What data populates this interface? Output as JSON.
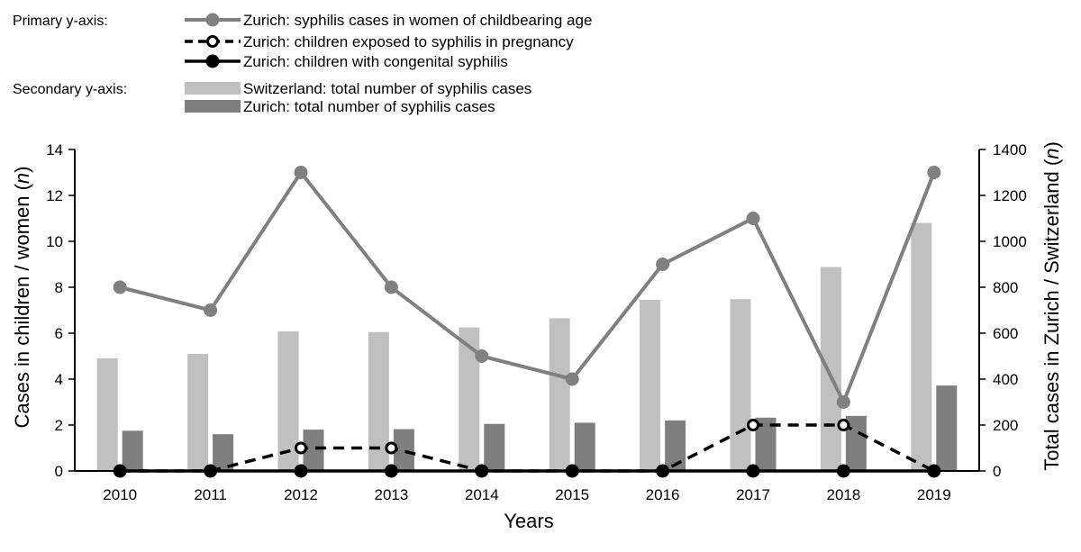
{
  "chart_data": {
    "type": "bar+line",
    "categories": [
      "2010",
      "2011",
      "2012",
      "2013",
      "2014",
      "2015",
      "2016",
      "2017",
      "2018",
      "2019"
    ],
    "xlabel": "Years",
    "ylabel": {
      "main": "Cases in children / women (",
      "var": "n",
      "end": ")"
    },
    "y2label": {
      "main": "Total cases in Zurich / Switzerland (",
      "var": "n",
      "end": ")"
    },
    "ylim": [
      0,
      14
    ],
    "yticks": [
      0,
      2,
      4,
      6,
      8,
      10,
      12,
      14
    ],
    "y2lim": [
      0,
      1400
    ],
    "y2ticks": [
      0,
      200,
      400,
      600,
      800,
      1000,
      1200,
      1400
    ],
    "legend_primary_header": "Primary y-axis:",
    "legend_secondary_header": "Secondary y-axis:",
    "bar_series": [
      {
        "name": "Switzerland: total number of syphilis cases",
        "color": "#c0c0c0",
        "axis": "secondary",
        "values": [
          490,
          510,
          608,
          605,
          625,
          665,
          745,
          748,
          888,
          1080
        ]
      },
      {
        "name": "Zurich: total number of syphilis cases",
        "color": "#7f7f7f",
        "axis": "secondary",
        "values": [
          175,
          160,
          180,
          182,
          205,
          210,
          220,
          232,
          240,
          372
        ]
      }
    ],
    "line_series": [
      {
        "name": "Zurich: syphilis cases in women of childbearing age",
        "color": "#808080",
        "style": "solid-filled",
        "axis": "primary",
        "values": [
          8,
          7,
          13,
          8,
          5,
          4,
          9,
          11,
          3,
          13
        ]
      },
      {
        "name": "Zurich: children exposed to syphilis in pregnancy",
        "color": "#000000",
        "style": "dashed-open",
        "axis": "primary",
        "values": [
          0,
          0,
          1,
          1,
          0,
          0,
          0,
          2,
          2,
          0
        ]
      },
      {
        "name": "Zurich: children with congenital syphilis",
        "color": "#000000",
        "style": "solid-filled",
        "axis": "primary",
        "values": [
          0,
          0,
          0,
          0,
          0,
          0,
          0,
          0,
          0,
          0
        ]
      }
    ]
  }
}
